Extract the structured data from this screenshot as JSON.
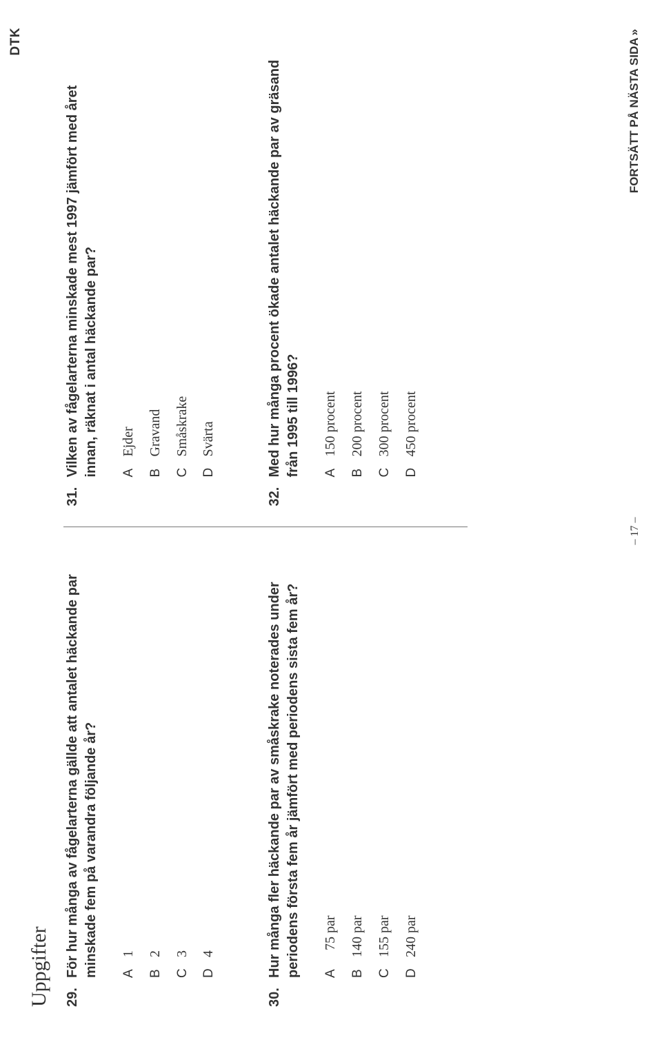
{
  "corner_label": "DTK",
  "section_heading": "Uppgifter",
  "questions": [
    {
      "number": "29.",
      "text": "För hur många av fågelarterna gällde att antalet häckande par minskade fem på varandra följande år?",
      "options": [
        {
          "letter": "A",
          "value": "1"
        },
        {
          "letter": "B",
          "value": "2"
        },
        {
          "letter": "C",
          "value": "3"
        },
        {
          "letter": "D",
          "value": "4"
        }
      ]
    },
    {
      "number": "30.",
      "text": "Hur många fler häckande par av småskrake noterades under periodens första fem år jämfört med periodens sista fem år?",
      "options": [
        {
          "letter": "A",
          "value": "  75 par"
        },
        {
          "letter": "B",
          "value": "140 par"
        },
        {
          "letter": "C",
          "value": "155 par"
        },
        {
          "letter": "D",
          "value": "240 par"
        }
      ]
    },
    {
      "number": "31.",
      "text": "Vilken av fågelarterna minskade mest 1997 jämfört med året innan, räknat i antal häckande par?",
      "options": [
        {
          "letter": "A",
          "value": "Ejder"
        },
        {
          "letter": "B",
          "value": "Gravand"
        },
        {
          "letter": "C",
          "value": "Småskrake"
        },
        {
          "letter": "D",
          "value": "Svärta"
        }
      ]
    },
    {
      "number": "32.",
      "text": "Med hur många procent ökade antalet häckande par av gräsand från 1995 till 1996?",
      "options": [
        {
          "letter": "A",
          "value": "150 procent"
        },
        {
          "letter": "B",
          "value": "200 procent"
        },
        {
          "letter": "C",
          "value": "300 procent"
        },
        {
          "letter": "D",
          "value": "450 procent"
        }
      ]
    }
  ],
  "footer_text": "FORTSÄTT PÅ NÄSTA SIDA",
  "footer_arrows": "»",
  "page_number": "– 17 –",
  "layout": {
    "columns": [
      [
        0,
        1
      ],
      [
        2,
        3
      ]
    ]
  },
  "style": {
    "body_font": "Georgia/serif",
    "sans_font": "Gill Sans / sans-serif",
    "text_color": "#333333",
    "heading_size_pt": 30,
    "question_size_pt": 20,
    "option_size_pt": 20,
    "divider_color": "#777777"
  }
}
